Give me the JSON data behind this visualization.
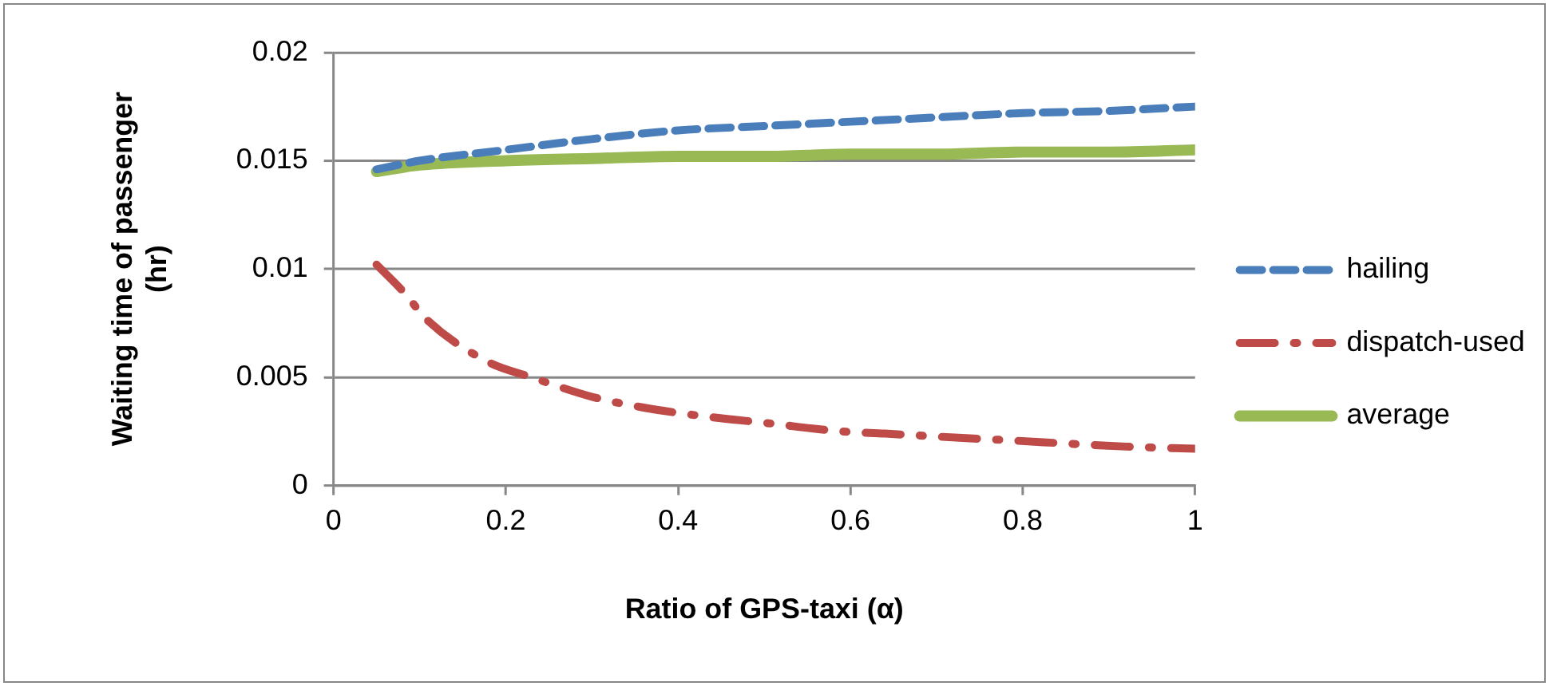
{
  "chart_data": {
    "type": "line",
    "xlabel": "Ratio of GPS-taxi (α)",
    "ylabel": "Waiting time of passenger (hr)",
    "xlim": [
      0,
      1
    ],
    "xticks": [
      0,
      0.2,
      0.4,
      0.6,
      0.8,
      1
    ],
    "ylim": [
      0,
      0.02
    ],
    "yticks": [
      0,
      0.005,
      0.01,
      0.015,
      0.02
    ],
    "grid": "y",
    "legend": "right",
    "marker": "none",
    "series": [
      {
        "name": "hailing",
        "color": "#4a7ebb",
        "line_style": "dashed",
        "x": [
          0.05,
          0.1,
          0.2,
          0.3,
          0.4,
          0.5,
          0.6,
          0.7,
          0.8,
          0.9,
          1
        ],
        "values": [
          0.0146,
          0.015,
          0.0155,
          0.016,
          0.0164,
          0.0166,
          0.0168,
          0.017,
          0.0172,
          0.0173,
          0.0175
        ]
      },
      {
        "name": "dispatch-used",
        "color": "#be4b48",
        "line_style": "dashdot",
        "x": [
          0.05,
          0.08,
          0.11,
          0.18,
          0.23,
          0.3,
          0.36,
          0.43,
          0.5,
          0.59,
          0.64,
          0.73,
          0.78,
          0.87,
          0.92,
          1
        ],
        "values": [
          0.0102,
          0.009,
          0.0076,
          0.0057,
          0.005,
          0.0041,
          0.0036,
          0.0032,
          0.0029,
          0.0025,
          0.0024,
          0.0022,
          0.0021,
          0.0019,
          0.0018,
          0.0017
        ]
      },
      {
        "name": "average",
        "color": "#98b954",
        "line_style": "solid",
        "x": [
          0.05,
          0.1,
          0.2,
          0.3,
          0.4,
          0.5,
          0.6,
          0.7,
          0.8,
          0.9,
          1
        ],
        "values": [
          0.0145,
          0.0148,
          0.015,
          0.0151,
          0.0152,
          0.0152,
          0.0153,
          0.0153,
          0.0154,
          0.0154,
          0.0155
        ]
      }
    ]
  }
}
